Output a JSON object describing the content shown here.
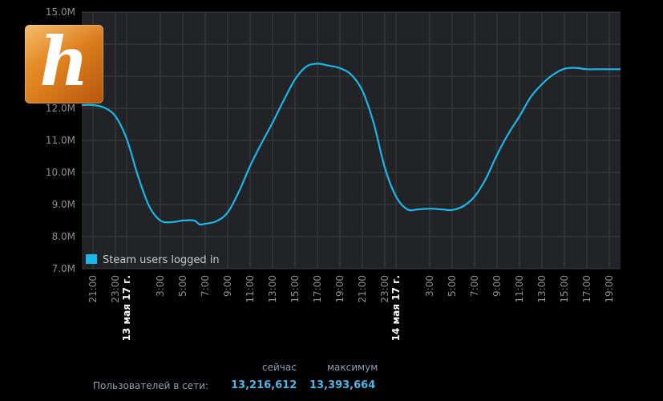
{
  "chart_data": {
    "type": "line",
    "ylim": [
      7000000,
      15000000
    ],
    "y_ticks": [
      {
        "value": 7000000,
        "label": "7.0M"
      },
      {
        "value": 8000000,
        "label": "8.0M"
      },
      {
        "value": 9000000,
        "label": "9.0M"
      },
      {
        "value": 10000000,
        "label": "10.0M"
      },
      {
        "value": 11000000,
        "label": "11.0M"
      },
      {
        "value": 12000000,
        "label": "12.0M"
      },
      {
        "value": 13000000,
        "label": "13.0M"
      },
      {
        "value": 14000000,
        "label": "14.0M"
      },
      {
        "value": 15000000,
        "label": "15.0M"
      }
    ],
    "xlim": [
      20,
      68
    ],
    "x_ticks": [
      {
        "hour": 21,
        "label": "21:00",
        "major": false
      },
      {
        "hour": 23,
        "label": "23:00",
        "major": false
      },
      {
        "hour": 24,
        "label": "13 мая 17 г.",
        "major": true
      },
      {
        "hour": 27,
        "label": "3:00",
        "major": false
      },
      {
        "hour": 29,
        "label": "5:00",
        "major": false
      },
      {
        "hour": 31,
        "label": "7:00",
        "major": false
      },
      {
        "hour": 33,
        "label": "9:00",
        "major": false
      },
      {
        "hour": 35,
        "label": "11:00",
        "major": false
      },
      {
        "hour": 37,
        "label": "13:00",
        "major": false
      },
      {
        "hour": 39,
        "label": "15:00",
        "major": false
      },
      {
        "hour": 41,
        "label": "17:00",
        "major": false
      },
      {
        "hour": 43,
        "label": "19:00",
        "major": false
      },
      {
        "hour": 45,
        "label": "21:00",
        "major": false
      },
      {
        "hour": 47,
        "label": "23:00",
        "major": false
      },
      {
        "hour": 48,
        "label": "14 мая 17 г.",
        "major": true
      },
      {
        "hour": 51,
        "label": "3:00",
        "major": false
      },
      {
        "hour": 53,
        "label": "5:00",
        "major": false
      },
      {
        "hour": 55,
        "label": "7:00",
        "major": false
      },
      {
        "hour": 57,
        "label": "9:00",
        "major": false
      },
      {
        "hour": 59,
        "label": "11:00",
        "major": false
      },
      {
        "hour": 61,
        "label": "13:00",
        "major": false
      },
      {
        "hour": 63,
        "label": "15:00",
        "major": false
      },
      {
        "hour": 65,
        "label": "17:00",
        "major": false
      },
      {
        "hour": 67,
        "label": "19:00",
        "major": false
      }
    ],
    "series": [
      {
        "name": "Steam users logged in",
        "color": "#1ab7ea",
        "x": [
          20,
          21,
          22,
          23,
          24,
          25,
          26,
          27,
          28,
          29,
          30,
          30.5,
          31,
          32,
          33,
          34,
          35,
          36,
          37,
          38,
          39,
          40,
          41,
          42,
          43,
          44,
          45,
          46,
          47,
          48,
          49,
          50,
          51,
          52,
          53,
          54,
          55,
          56,
          57,
          58,
          59,
          60,
          61,
          62,
          63,
          64,
          65,
          66,
          67,
          68
        ],
        "values": [
          12100000,
          12100000,
          12020000,
          11750000,
          11050000,
          9900000,
          8950000,
          8500000,
          8450000,
          8500000,
          8500000,
          8380000,
          8400000,
          8480000,
          8750000,
          9400000,
          10200000,
          10900000,
          11550000,
          12250000,
          12900000,
          13300000,
          13390000,
          13330000,
          13250000,
          13050000,
          12550000,
          11550000,
          10150000,
          9250000,
          8850000,
          8850000,
          8870000,
          8850000,
          8830000,
          8950000,
          9250000,
          9800000,
          10550000,
          11200000,
          11750000,
          12350000,
          12750000,
          13050000,
          13230000,
          13260000,
          13216612,
          13216612,
          13216612,
          13216612
        ]
      }
    ],
    "legend": "Steam users logged in"
  },
  "stats": {
    "current_header": "сейчас",
    "max_header": "максимум",
    "label": "Пользователей в сети:",
    "current_value": "13,216,612",
    "max_value": "13,393,664"
  },
  "logo": {
    "letter": "h"
  },
  "colors": {
    "plot_bg": "#222326",
    "grid": "#3a3c40",
    "line": "#1ab7ea",
    "axis_text": "#8c8f93",
    "major_text": "#ffffff",
    "stat_value": "#4fb4e8"
  }
}
